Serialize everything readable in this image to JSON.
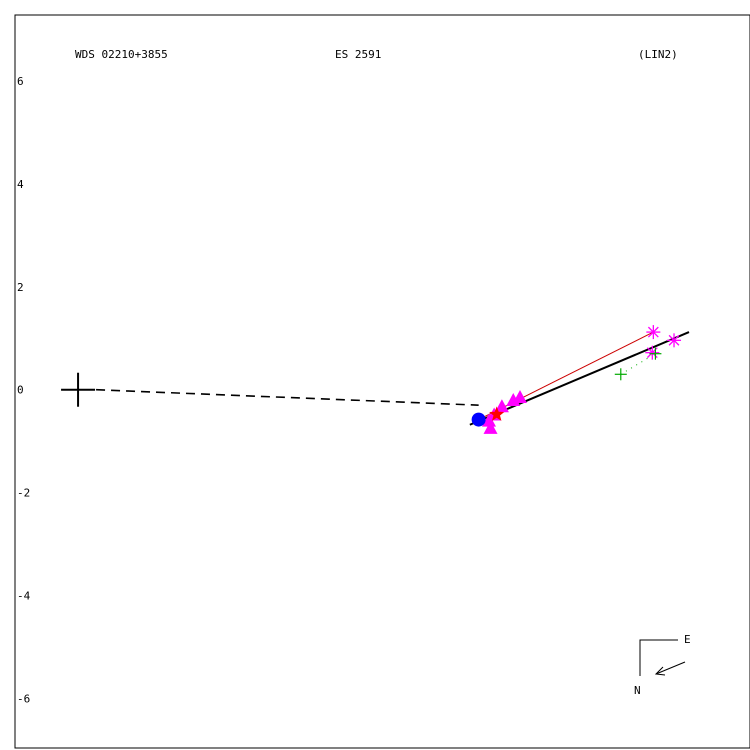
{
  "chart_data": {
    "type": "scatter",
    "title_left": "WDS 02210+3855",
    "title_center": "ES 2591",
    "title_right": "(LIN2)",
    "y_ticks": [
      "6",
      "4",
      "2",
      "0",
      "-2",
      "-4",
      "-6"
    ],
    "xlim": [
      -1.22,
      13.0
    ],
    "ylim": [
      -6.96,
      7.28
    ],
    "compass": {
      "east_label": "E",
      "north_label": "N"
    },
    "primary": {
      "x": 0,
      "y": 0
    },
    "measurements": [
      {
        "marker": "triangle",
        "color": "#ff00ff",
        "points": [
          [
            7.95,
            -0.6
          ],
          [
            8.05,
            -0.48
          ],
          [
            8.2,
            -0.32
          ],
          [
            8.42,
            -0.2
          ],
          [
            8.55,
            -0.14
          ],
          [
            7.98,
            -0.74
          ]
        ]
      },
      {
        "marker": "star",
        "color": "#ff0000",
        "points": [
          [
            8.1,
            -0.48
          ]
        ]
      },
      {
        "marker": "circle",
        "color": "#0000ff",
        "points": [
          [
            7.75,
            -0.58
          ]
        ]
      },
      {
        "marker": "asterisk",
        "color": "#ff00ff",
        "points": [
          [
            11.13,
            1.12
          ],
          [
            11.11,
            0.72
          ],
          [
            11.53,
            0.96
          ]
        ]
      },
      {
        "marker": "plus",
        "color": "#00aa00",
        "points": [
          [
            10.5,
            0.3
          ],
          [
            11.17,
            0.7
          ]
        ]
      }
    ],
    "orbit_line": {
      "color": "#000000",
      "from": [
        7.58,
        -0.68
      ],
      "to": [
        11.82,
        1.12
      ]
    },
    "reference_line": {
      "color": "#cc0000",
      "from": [
        7.75,
        -0.58
      ],
      "to": [
        11.13,
        1.12
      ]
    },
    "dotted_link": {
      "color": "#00aa00",
      "from": [
        10.5,
        0.3
      ],
      "to": [
        11.17,
        0.7
      ]
    },
    "primary_link": {
      "color": "#000000",
      "from": [
        0,
        0
      ],
      "to": [
        7.75,
        -0.3
      ]
    }
  }
}
